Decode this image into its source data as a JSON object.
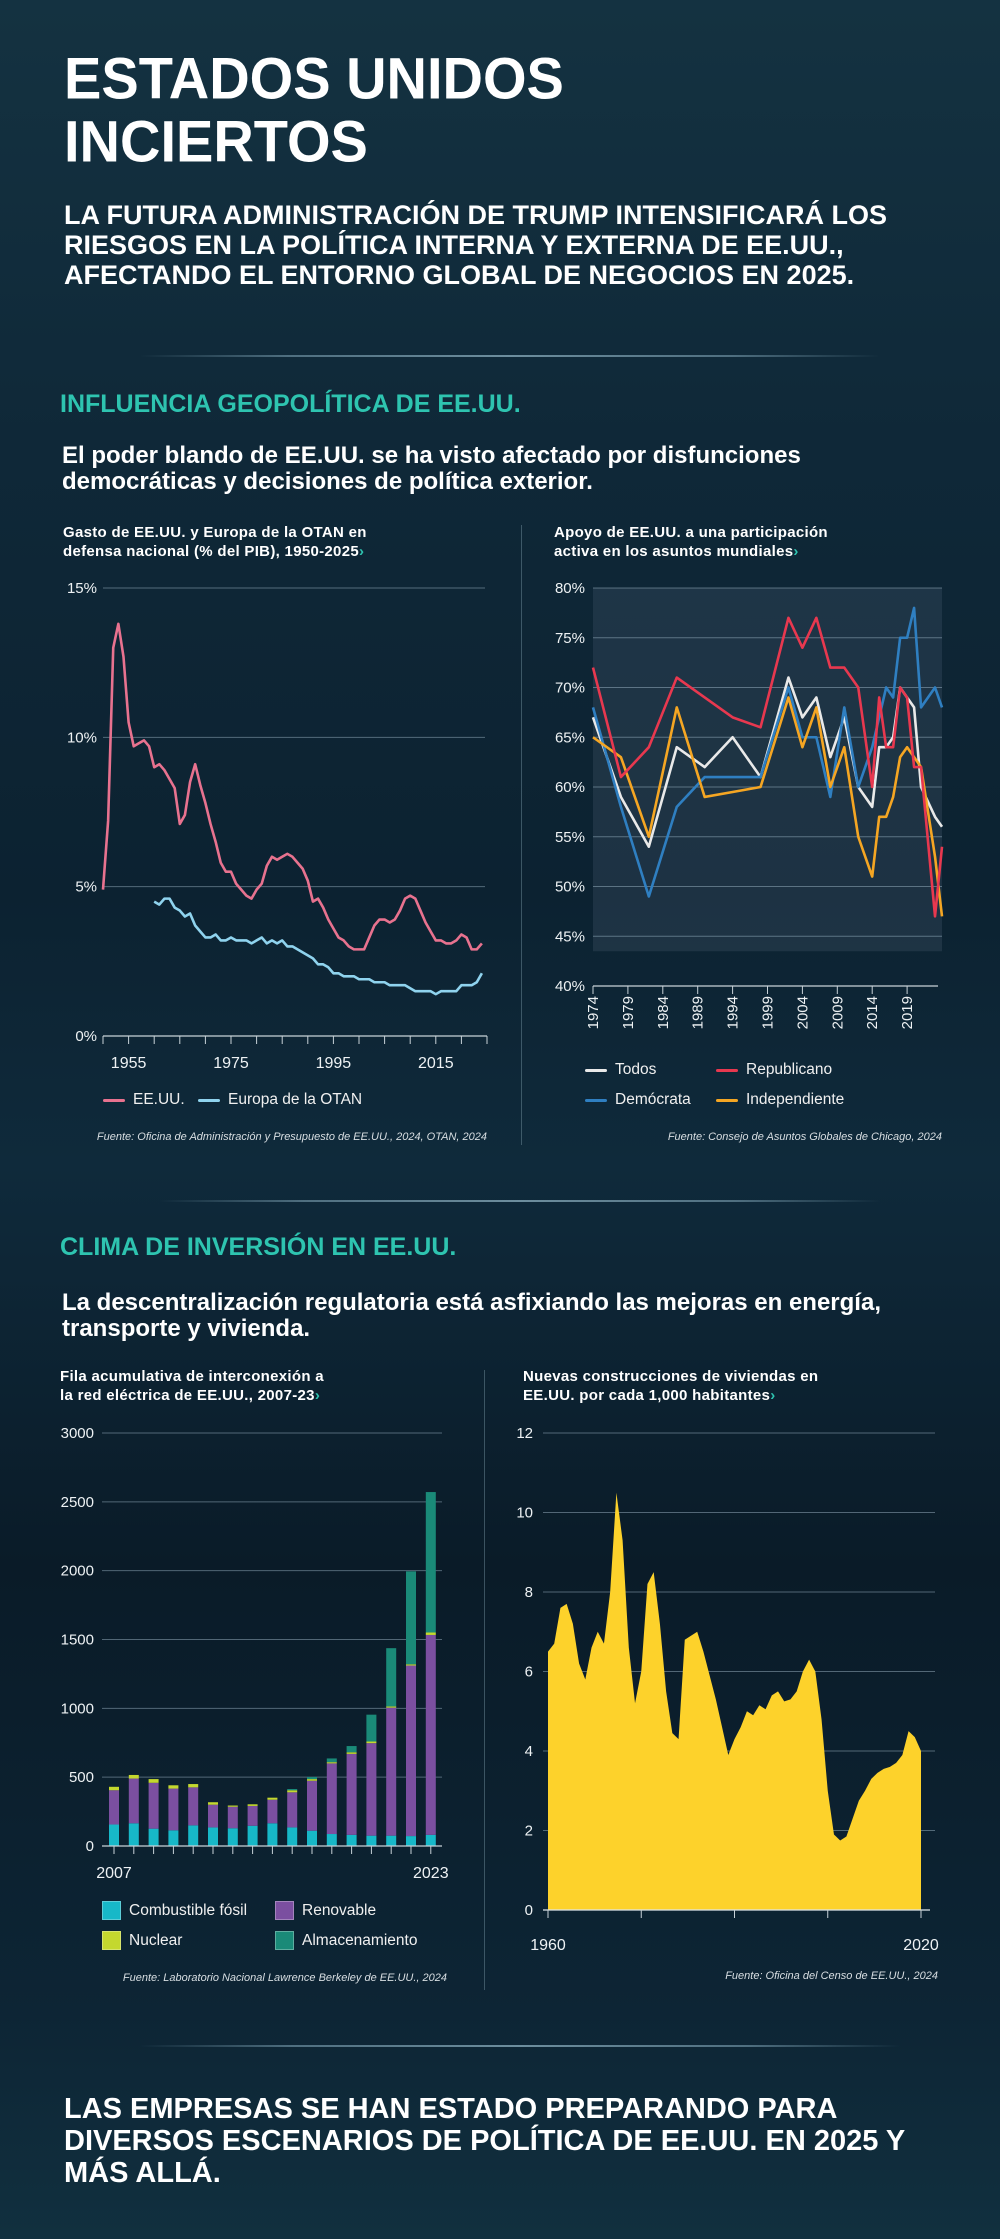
{
  "header": {
    "title_line1": "ESTADOS UNIDOS",
    "title_line2": "INCIERTOS",
    "subtitle": "LA FUTURA ADMINISTRACIÓN DE TRUMP INTENSIFICARÁ LOS RIESGOS EN LA POLÍTICA INTERNA Y EXTERNA DE EE.UU., AFECTANDO EL ENTORNO GLOBAL DE NEGOCIOS EN 2025."
  },
  "sections": [
    {
      "heading": "INFLUENCIA GEOPOLÍTICA DE EE.UU.",
      "lead": "El poder blando de EE.UU. se ha visto afectado por disfunciones democráticas y decisiones de política exterior."
    },
    {
      "heading": "CLIMA DE INVERSIÓN EN EE.UU.",
      "lead": "La descentralización regulatoria está asfixiando las mejoras en energía, transporte y vivienda."
    }
  ],
  "closing": "LAS EMPRESAS SE HAN ESTADO PREPARANDO PARA DIVERSOS ESCENARIOS DE POLÍTICA DE EE.UU. EN 2025 Y MÁS ALLÁ.",
  "colors": {
    "accent": "#2ec4b0",
    "background": "#0f2838"
  },
  "chevron_icon": "chevron-right-icon",
  "chart_data": [
    {
      "type": "line",
      "title_line1": "Gasto de EE.UU. y Europa de la OTAN en",
      "title_line2": "defensa nacional (% del PIB), 1950-2025",
      "ylim": [
        0,
        15
      ],
      "yticks": [
        "0%",
        "5%",
        "10%",
        "15%"
      ],
      "xticks": [
        "1955",
        "1975",
        "1995",
        "2015"
      ],
      "grid": true,
      "legend_position": "bottom-left",
      "series": [
        {
          "name": "EE.UU.",
          "color": "#e8728f",
          "x_start": 1950,
          "values": [
            4.9,
            7.2,
            13.0,
            13.8,
            12.7,
            10.5,
            9.7,
            9.8,
            9.9,
            9.7,
            9.0,
            9.1,
            8.9,
            8.6,
            8.3,
            7.1,
            7.4,
            8.5,
            9.1,
            8.4,
            7.8,
            7.1,
            6.5,
            5.8,
            5.5,
            5.5,
            5.1,
            4.9,
            4.7,
            4.6,
            4.9,
            5.1,
            5.7,
            6.0,
            5.9,
            6.0,
            6.1,
            6.0,
            5.8,
            5.6,
            5.2,
            4.5,
            4.6,
            4.3,
            3.9,
            3.6,
            3.3,
            3.2,
            3.0,
            2.9,
            2.9,
            2.9,
            3.3,
            3.7,
            3.9,
            3.9,
            3.8,
            3.9,
            4.2,
            4.6,
            4.7,
            4.6,
            4.2,
            3.8,
            3.5,
            3.2,
            3.2,
            3.1,
            3.1,
            3.2,
            3.4,
            3.3,
            2.9,
            2.9,
            3.1
          ]
        },
        {
          "name": "Europa de la OTAN",
          "color": "#8fd3ee",
          "x_start": 1960,
          "values": [
            4.5,
            4.4,
            4.6,
            4.6,
            4.3,
            4.2,
            4.0,
            4.1,
            3.7,
            3.5,
            3.3,
            3.3,
            3.4,
            3.2,
            3.2,
            3.3,
            3.2,
            3.2,
            3.2,
            3.1,
            3.2,
            3.3,
            3.1,
            3.2,
            3.1,
            3.2,
            3.0,
            3.0,
            2.9,
            2.8,
            2.7,
            2.6,
            2.4,
            2.4,
            2.3,
            2.1,
            2.1,
            2.0,
            2.0,
            2.0,
            1.9,
            1.9,
            1.9,
            1.8,
            1.8,
            1.8,
            1.7,
            1.7,
            1.7,
            1.7,
            1.6,
            1.5,
            1.5,
            1.5,
            1.5,
            1.4,
            1.5,
            1.5,
            1.5,
            1.5,
            1.7,
            1.7,
            1.7,
            1.8,
            2.1
          ]
        }
      ],
      "source": "Fuente: Oficina de Administración y Presupuesto de EE.UU., 2024, OTAN, 2024"
    },
    {
      "type": "line",
      "title_line1": "Apoyo de EE.UU. a una participación",
      "title_line2": "activa en los asuntos mundiales",
      "ylim": [
        40,
        80
      ],
      "yticks": [
        "40%",
        "45%",
        "50%",
        "55%",
        "60%",
        "65%",
        "70%",
        "75%",
        "80%"
      ],
      "xticks": [
        "1974",
        "1979",
        "1984",
        "1989",
        "1994",
        "1999",
        "2004",
        "2009",
        "2014",
        "2019"
      ],
      "grid": true,
      "legend_position": "bottom",
      "x": [
        1974,
        1978,
        1982,
        1986,
        1990,
        1994,
        1998,
        2002,
        2004,
        2006,
        2008,
        2010,
        2012,
        2014,
        2015,
        2016,
        2017,
        2018,
        2019,
        2020,
        2021,
        2023,
        2024
      ],
      "series": [
        {
          "name": "Todos",
          "color": "#e9e9e9",
          "values": [
            67,
            59,
            54,
            64,
            62,
            65,
            61,
            71,
            67,
            69,
            63,
            67,
            60,
            58,
            64,
            64,
            65,
            70,
            69,
            68,
            60,
            57,
            56
          ]
        },
        {
          "name": "Republicano",
          "color": "#e8384f",
          "values": [
            72,
            61,
            64,
            71,
            69,
            67,
            66,
            77,
            74,
            77,
            72,
            72,
            70,
            60,
            69,
            64,
            64,
            70,
            69,
            62,
            62,
            47,
            54
          ]
        },
        {
          "name": "Demócrata",
          "color": "#2f7fc1",
          "values": [
            68,
            58,
            49,
            58,
            61,
            61,
            61,
            70,
            65,
            65,
            59,
            68,
            60,
            64,
            67,
            70,
            69,
            75,
            75,
            78,
            68,
            70,
            68
          ]
        },
        {
          "name": "Independiente",
          "color": "#f5a623",
          "values": [
            65,
            63,
            55,
            68,
            59,
            59.5,
            60,
            69,
            64,
            68,
            60,
            64,
            55,
            51,
            57,
            57,
            59,
            63,
            64,
            63,
            62,
            53,
            47
          ]
        }
      ],
      "source": "Fuente: Consejo de Asuntos Globales de Chicago, 2024"
    },
    {
      "type": "bar",
      "stacked": true,
      "title_line1": "Fila acumulativa de interconexión a",
      "title_line2": "la red eléctrica de EE.UU., 2007-23",
      "ylim": [
        0,
        3000
      ],
      "yticks": [
        "0",
        "500",
        "1000",
        "1500",
        "2000",
        "2500",
        "3000"
      ],
      "xticks": [
        "2007",
        "2023"
      ],
      "grid": true,
      "legend_position": "bottom",
      "categories": [
        2007,
        2008,
        2009,
        2010,
        2011,
        2012,
        2013,
        2014,
        2015,
        2016,
        2017,
        2018,
        2019,
        2020,
        2021,
        2022,
        2023
      ],
      "series": [
        {
          "name": "Combustible fósil",
          "color": "#17b8c8",
          "values": [
            156,
            165,
            126,
            114,
            150,
            135,
            129,
            147,
            165,
            135,
            111,
            87,
            81,
            75,
            75,
            72,
            81
          ]
        },
        {
          "name": "Renovable",
          "color": "#7b4fa0",
          "values": [
            249,
            325,
            333,
            303,
            276,
            165,
            156,
            144,
            171,
            255,
            363,
            513,
            588,
            672,
            930,
            1239,
            1452
          ]
        },
        {
          "name": "Nuclear",
          "color": "#c4d82e",
          "values": [
            25,
            26,
            27,
            24,
            24,
            18,
            9,
            12,
            15,
            15,
            12,
            9,
            12,
            12,
            9,
            9,
            18
          ]
        },
        {
          "name": "Almacenamiento",
          "color": "#1a8a78",
          "values": [
            0,
            0,
            0,
            0,
            0,
            0,
            0,
            0,
            0,
            9,
            15,
            27,
            45,
            195,
            423,
            675,
            1020
          ]
        }
      ],
      "source": "Fuente: Laboratorio Nacional Lawrence Berkeley de EE.UU., 2024"
    },
    {
      "type": "area",
      "title_line1": "Nuevas construcciones de viviendas en",
      "title_line2": "EE.UU. por cada 1,000 habitantes",
      "ylim": [
        0,
        12
      ],
      "yticks": [
        "0",
        "2",
        "4",
        "6",
        "8",
        "10",
        "12"
      ],
      "xticks": [
        "1960",
        "2020"
      ],
      "grid": true,
      "color": "#fdd22b",
      "x_start": 1960,
      "values": [
        6.5,
        6.7,
        7.6,
        7.7,
        7.2,
        6.2,
        5.8,
        6.6,
        7.0,
        6.7,
        8.0,
        10.5,
        9.3,
        6.6,
        5.2,
        6.0,
        8.2,
        8.5,
        7.2,
        5.5,
        4.45,
        4.3,
        6.8,
        6.9,
        7.0,
        6.5,
        5.9,
        5.3,
        4.6,
        3.9,
        4.3,
        4.6,
        5.0,
        4.9,
        5.15,
        5.05,
        5.4,
        5.5,
        5.25,
        5.3,
        5.5,
        6.0,
        6.3,
        6.0,
        4.8,
        3.0,
        1.9,
        1.75,
        1.85,
        2.3,
        2.75,
        3.0,
        3.3,
        3.45,
        3.55,
        3.6,
        3.7,
        3.9,
        4.5,
        4.35,
        4.0
      ],
      "source": "Fuente: Oficina del Censo de EE.UU., 2024"
    }
  ]
}
